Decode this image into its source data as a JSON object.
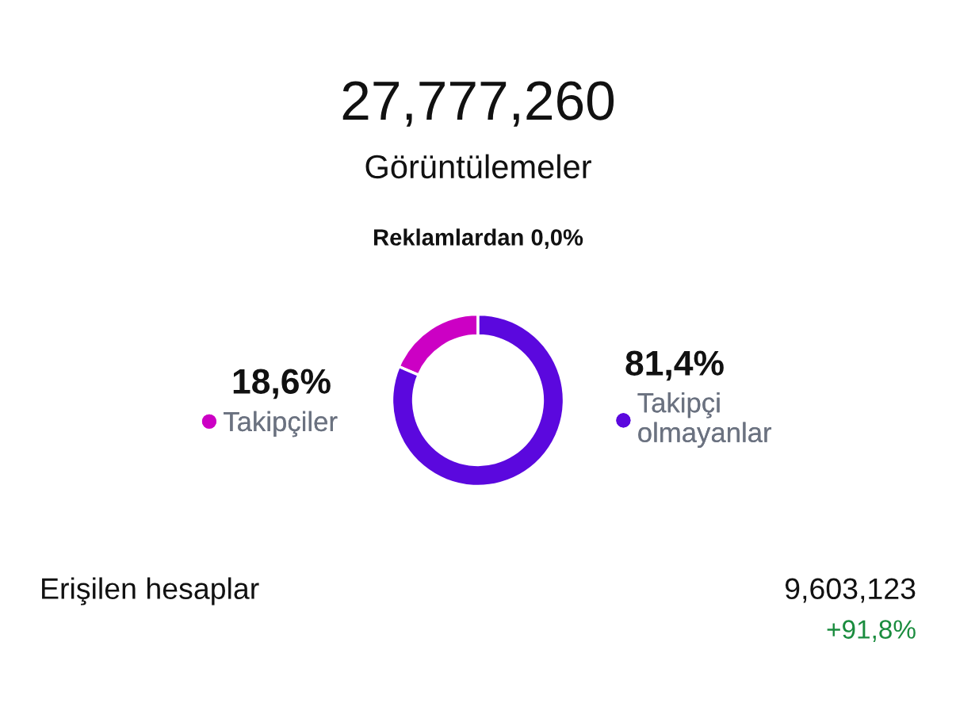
{
  "chart_data": {
    "type": "donut",
    "title": "27,777,260",
    "subtitle": "Görüntülemeler",
    "categories": [
      "Takipçiler",
      "Takipçi olmayanlar"
    ],
    "values": [
      18.6,
      81.4
    ],
    "colors": [
      "#cc00c4",
      "#5b08de"
    ],
    "legend": "right",
    "value_labels": [
      "18,6%",
      "81,4%"
    ],
    "annotations": [
      "Reklamlardan 0,0%",
      "Erişilen hesaplar",
      "9,603,123",
      "+91,8%"
    ]
  }
}
